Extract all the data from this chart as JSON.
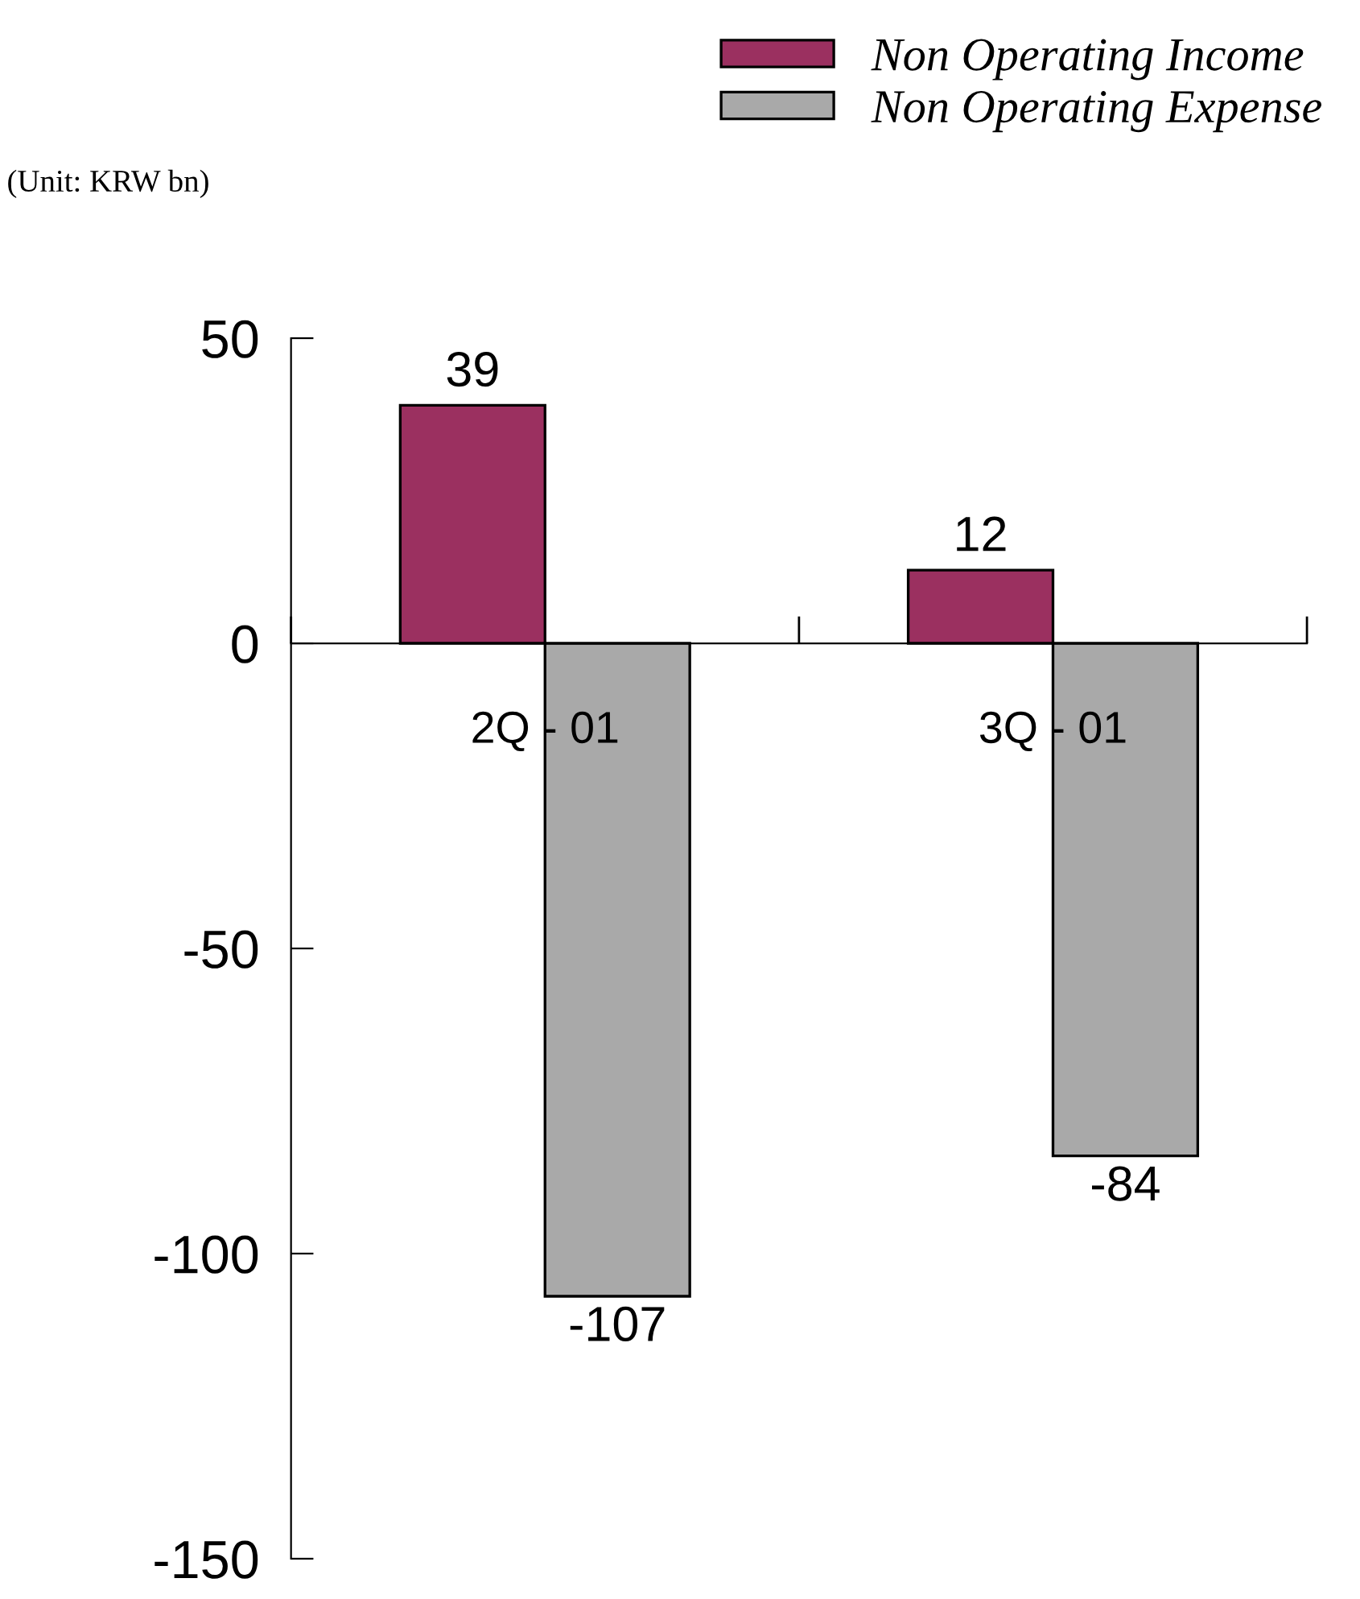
{
  "chart_data": {
    "type": "bar",
    "annotations": [
      "(Unit: KRW bn)"
    ],
    "categories": [
      "2Q - 01",
      "3Q - 01"
    ],
    "series": [
      {
        "name": "Non Operating Income",
        "color": "#9b3060",
        "values": [
          39,
          12
        ]
      },
      {
        "name": "Non Operating Expense",
        "color": "#a9a9a9",
        "values": [
          -107,
          -84
        ]
      }
    ],
    "ylim": [
      -150,
      50
    ],
    "yticks": [
      -150,
      -100,
      -50,
      0,
      50
    ],
    "data_labels": true,
    "legend": "top right",
    "grid": false
  }
}
